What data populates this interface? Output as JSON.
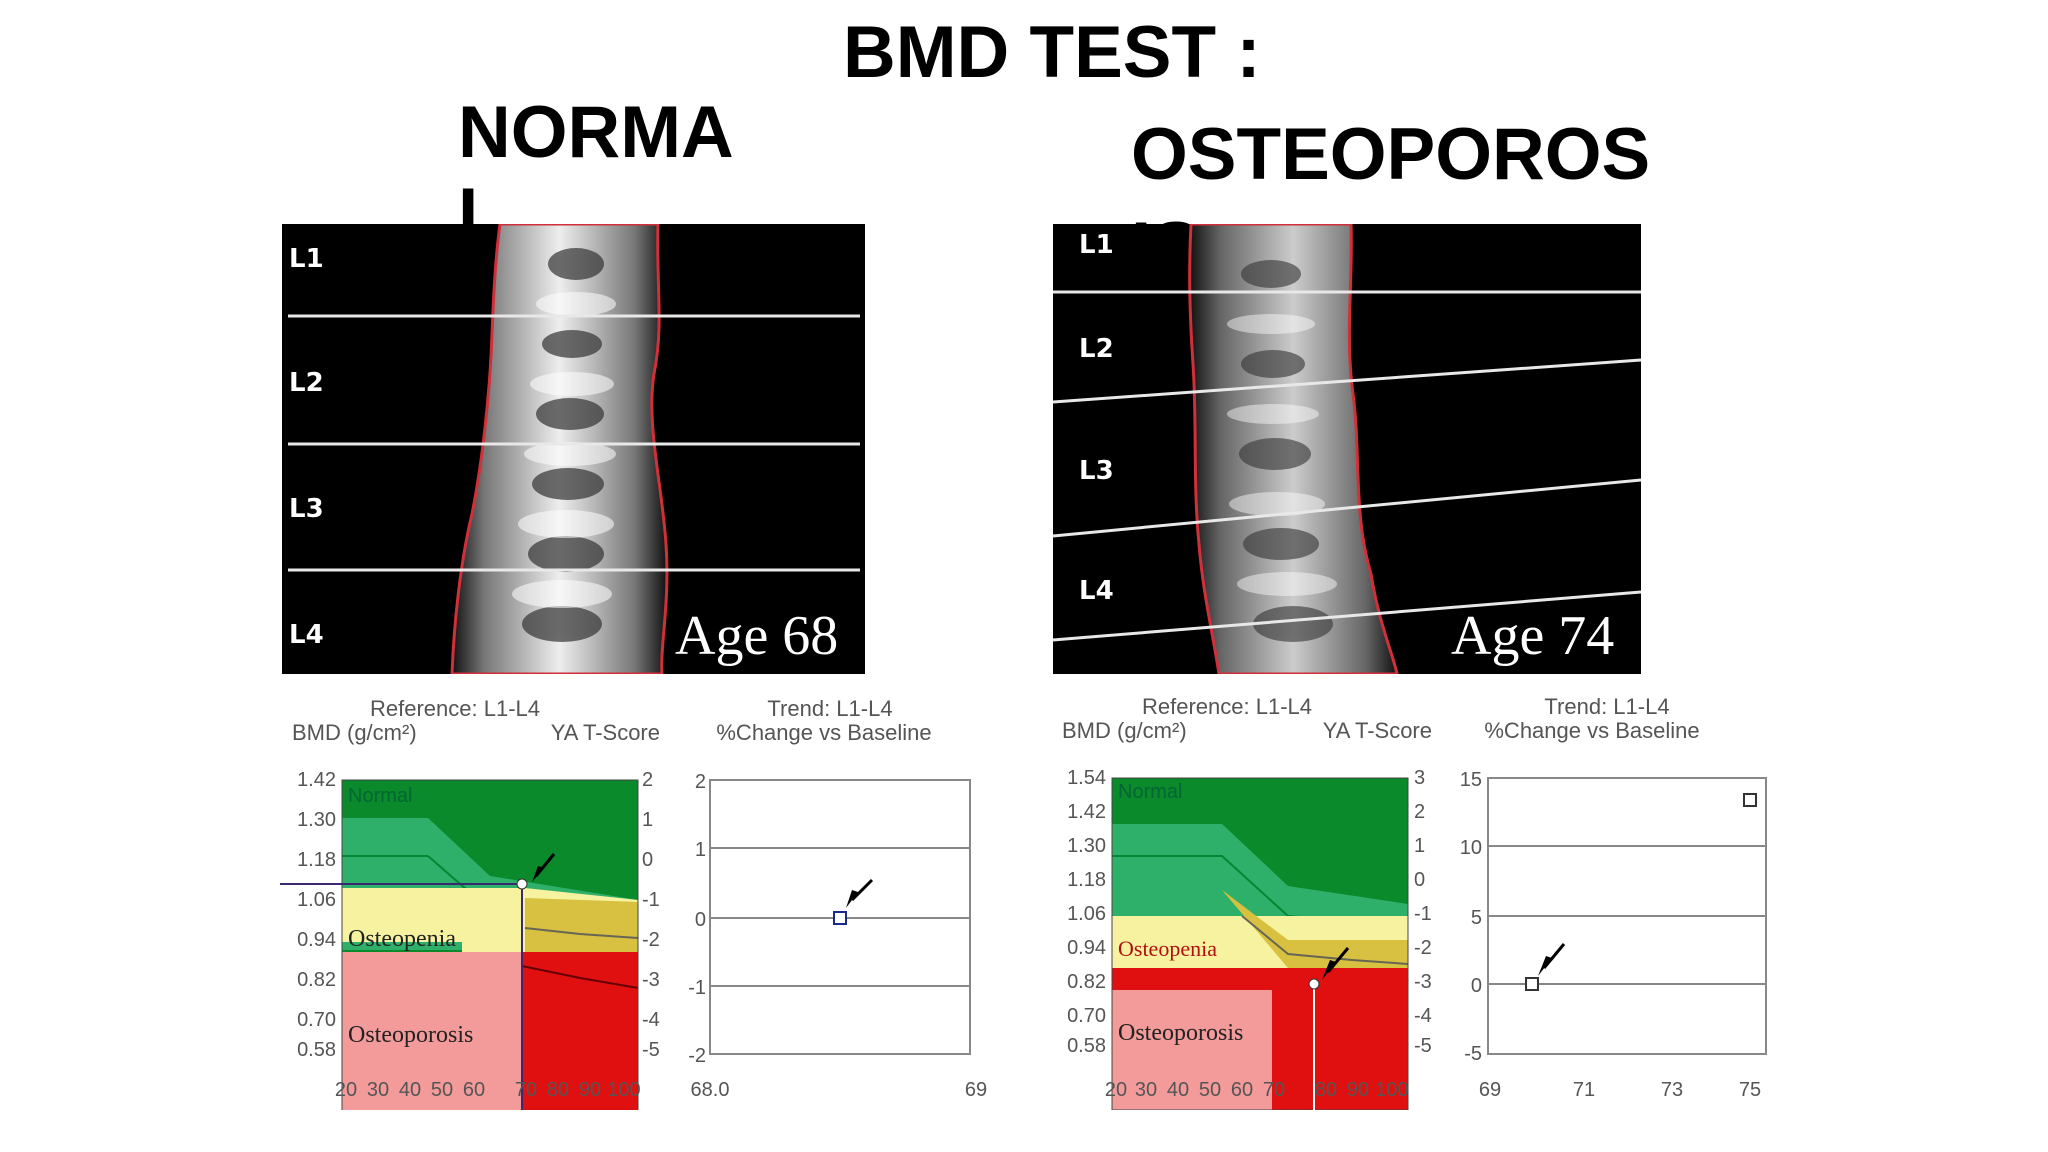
{
  "slide": {
    "title": "BMD TEST :",
    "normal_label": "NORMAL",
    "osteoporosis_label": "OSTEOPOROSIS"
  },
  "scans": [
    {
      "age_label": "Age 68",
      "vertebrae": [
        "L1",
        "L2",
        "L3",
        "L4"
      ]
    },
    {
      "age_label": "Age 74",
      "vertebrae": [
        "L1",
        "L2",
        "L3",
        "L4"
      ]
    }
  ],
  "colors": {
    "normal_zone": "#0a8a2a",
    "normal_band": "#2fb06a",
    "osteopenia_zone": "#f7f2a0",
    "osteoporosis_zone": "#f39a9a",
    "patient_osteoporosis": "#e01010",
    "patient_osteopenia": "#d8c040",
    "spine_outline": "#d0303a"
  },
  "charts": [
    {
      "reference_title": "Reference: L1-L4",
      "bmd_label": "BMD (g/cm²)",
      "tscore_label": "YA T-Score",
      "bmd_ticks": [
        "1.42",
        "1.30",
        "1.18",
        "1.06",
        "0.94",
        "0.82",
        "0.70",
        "0.58"
      ],
      "tscore_ticks": [
        "2",
        "1",
        "0",
        "-1",
        "-2",
        "-3",
        "-4",
        "-5"
      ],
      "age_ticks": [
        "20",
        "30",
        "40",
        "50",
        "60",
        "70",
        "80",
        "90",
        "100"
      ],
      "zone_labels": {
        "normal": "Normal",
        "osteopenia": "Osteopenia",
        "osteoporosis": "Osteoporosis"
      },
      "trend_title": "Trend: L1-L4",
      "trend_subtitle": "%Change vs Baseline",
      "trend_y_ticks": [
        "2",
        "1",
        "0",
        "-1",
        "-2"
      ],
      "trend_x_ticks": [
        "68.0",
        "69"
      ]
    },
    {
      "reference_title": "Reference: L1-L4",
      "bmd_label": "BMD (g/cm²)",
      "tscore_label": "YA T-Score",
      "bmd_ticks": [
        "1.54",
        "1.42",
        "1.30",
        "1.18",
        "1.06",
        "0.94",
        "0.82",
        "0.70",
        "0.58"
      ],
      "tscore_ticks": [
        "3",
        "2",
        "1",
        "0",
        "-1",
        "-2",
        "-3",
        "-4",
        "-5"
      ],
      "age_ticks": [
        "20",
        "30",
        "40",
        "50",
        "60",
        "70",
        "80",
        "90",
        "100"
      ],
      "zone_labels": {
        "normal": "Normal",
        "osteopenia": "Osteopenia",
        "osteoporosis": "Osteoporosis"
      },
      "trend_title": "Trend: L1-L4",
      "trend_subtitle": "%Change vs Baseline",
      "trend_y_ticks": [
        "15",
        "10",
        "5",
        "0",
        "-5"
      ],
      "trend_x_ticks": [
        "69",
        "71",
        "73",
        "75"
      ]
    }
  ]
}
